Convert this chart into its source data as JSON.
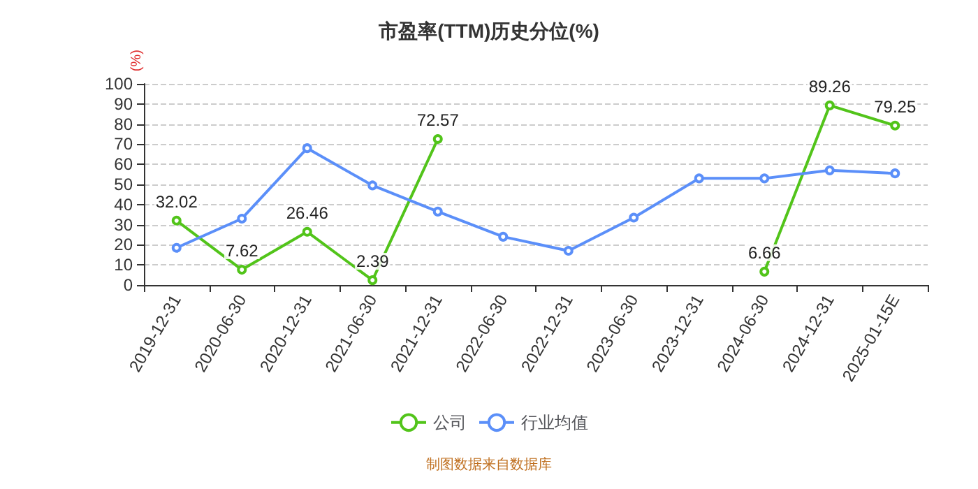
{
  "chart_data": {
    "type": "line",
    "title": "市盈率(TTM)历史分位(%)",
    "ylabel": "(%)",
    "categories": [
      "2019-12-31",
      "2020-06-30",
      "2020-12-31",
      "2021-06-30",
      "2021-12-31",
      "2022-06-30",
      "2022-12-31",
      "2023-06-30",
      "2023-12-31",
      "2024-06-30",
      "2024-12-31",
      "2025-01-15E"
    ],
    "series": [
      {
        "name": "公司",
        "color": "#52c41a",
        "values": [
          32.02,
          7.62,
          26.46,
          2.39,
          72.57,
          null,
          null,
          null,
          null,
          6.66,
          89.26,
          79.25
        ],
        "value_labels": [
          "32.02",
          "7.62",
          "26.46",
          "2.39",
          "72.57",
          null,
          null,
          null,
          null,
          "6.66",
          "89.26",
          "79.25"
        ]
      },
      {
        "name": "行业均值",
        "color": "#5b8ff9",
        "values": [
          18.5,
          33,
          68,
          49.5,
          36.5,
          24,
          17,
          33.5,
          53,
          53,
          57,
          55.5
        ]
      }
    ],
    "ylim": [
      0,
      100
    ],
    "yticks": [
      0,
      10,
      20,
      30,
      40,
      50,
      60,
      70,
      80,
      90,
      100
    ],
    "grid": "y",
    "legend": "bottom",
    "marker": "circle",
    "annotations": [
      "制图数据来自数据库"
    ]
  }
}
